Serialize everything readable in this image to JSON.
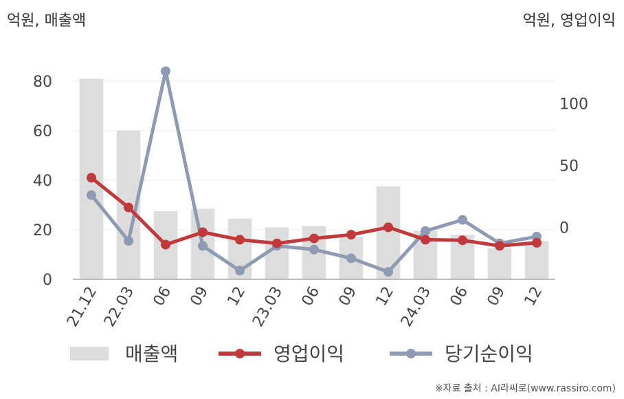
{
  "units": {
    "left": "억원, 매출액",
    "right": "억원, 영업이익"
  },
  "source": "※자료 출처 : AI라씨로(www.rassiro.com)",
  "chart_data": {
    "type": "bar+line",
    "categories": [
      "21.12",
      "22.03",
      "06",
      "09",
      "12",
      "23.03",
      "06",
      "09",
      "12",
      "24.03",
      "06",
      "09",
      "12"
    ],
    "left_axis": {
      "ylim": [
        0,
        85
      ],
      "ticks": [
        0,
        20,
        40,
        60,
        80
      ]
    },
    "right_axis": {
      "ylim": [
        -42,
        128
      ],
      "ticks": [
        0,
        50,
        100
      ]
    },
    "series": [
      {
        "name": "매출액",
        "kind": "bar",
        "axis": "left",
        "color": "#dddddd",
        "values": [
          81,
          60,
          27.5,
          28.5,
          24.5,
          21,
          21.5,
          17,
          37.5,
          19.5,
          18,
          12.5,
          15.5
        ]
      },
      {
        "name": "영업이익",
        "kind": "line",
        "axis": "right",
        "color": "#c0393b",
        "values": [
          40,
          16,
          -14,
          -4,
          -10,
          -13,
          -9,
          -6,
          0,
          -10,
          -10.5,
          -15,
          -12.5
        ]
      },
      {
        "name": "당기순이익",
        "kind": "line",
        "axis": "right",
        "color": "#8f9ab3",
        "values": [
          26,
          -11,
          126,
          -15,
          -35,
          -15,
          -18,
          -25,
          -36,
          -3,
          6,
          -13,
          -7.5
        ]
      }
    ],
    "legend_position": "bottom",
    "grid": true
  }
}
